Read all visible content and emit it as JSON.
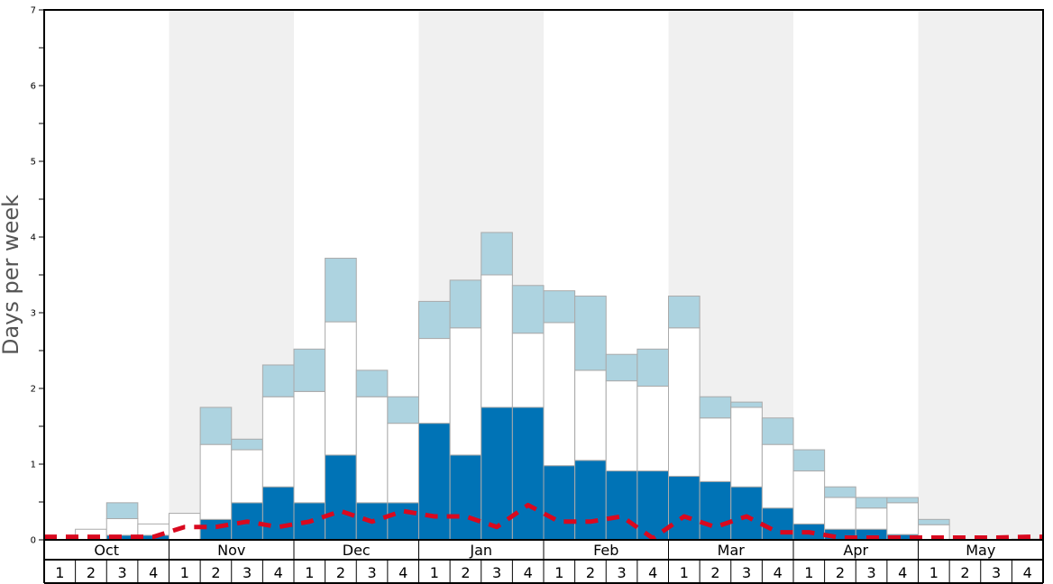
{
  "chart_data": {
    "type": "bar",
    "title": "",
    "ylabel": "Days per week",
    "xlabel": "",
    "ylim": [
      0,
      7
    ],
    "y_ticks": [
      "0",
      "1",
      "2",
      "3",
      "4",
      "5",
      "6",
      "7"
    ],
    "months": [
      "Oct",
      "Nov",
      "Dec",
      "Jan",
      "Feb",
      "Mar",
      "Apr",
      "May"
    ],
    "week_labels": [
      "1",
      "2",
      "3",
      "4",
      "1",
      "2",
      "3",
      "4",
      "1",
      "2",
      "3",
      "4",
      "1",
      "2",
      "3",
      "4",
      "1",
      "2",
      "3",
      "4",
      "1",
      "2",
      "3",
      "4",
      "1",
      "2",
      "3",
      "4",
      "1",
      "2",
      "3",
      "4"
    ],
    "colors": {
      "dark_segment": "#0073b6",
      "mid_segment": "#ffffff",
      "light_segment": "#add3e0",
      "bar_stroke": "#aaaaaa",
      "shade_band": "#f0f0f0",
      "dashed_line": "#d9091f",
      "axis": "#000000"
    },
    "series": [
      {
        "name": "dark",
        "values": [
          0,
          0,
          0.06,
          0.06,
          0,
          0.27,
          0.49,
          0.7,
          0.49,
          1.12,
          0.49,
          0.49,
          1.54,
          1.12,
          1.75,
          1.75,
          0.98,
          1.05,
          0.91,
          0.91,
          0.84,
          0.77,
          0.7,
          0.42,
          0.21,
          0.14,
          0.14,
          0.07,
          0,
          0,
          0,
          0
        ]
      },
      {
        "name": "mid",
        "values": [
          0,
          0.14,
          0.22,
          0.15,
          0.35,
          0.99,
          0.7,
          1.19,
          1.47,
          1.76,
          1.4,
          1.05,
          1.12,
          1.68,
          1.75,
          0.98,
          1.89,
          1.19,
          1.19,
          1.12,
          1.96,
          0.84,
          1.05,
          0.84,
          0.7,
          0.42,
          0.28,
          0.42,
          0.2,
          0,
          0,
          0
        ]
      },
      {
        "name": "light",
        "values": [
          0,
          0,
          0.21,
          0,
          0,
          0.49,
          0.14,
          0.42,
          0.56,
          0.84,
          0.35,
          0.35,
          0.49,
          0.63,
          0.56,
          0.63,
          0.42,
          0.98,
          0.35,
          0.49,
          0.42,
          0.28,
          0.07,
          0.35,
          0.28,
          0.14,
          0.14,
          0.07,
          0.07,
          0,
          0,
          0.01
        ]
      },
      {
        "name": "dashed-line",
        "values": [
          0.04,
          0.04,
          0.04,
          0.04,
          0.17,
          0.17,
          0.24,
          0.17,
          0.24,
          0.38,
          0.24,
          0.38,
          0.31,
          0.31,
          0.17,
          0.46,
          0.24,
          0.24,
          0.31,
          0.02,
          0.31,
          0.17,
          0.31,
          0.1,
          0.1,
          0.03,
          0.03,
          0.03,
          0.03,
          0.03,
          0.03,
          0.04
        ]
      }
    ]
  }
}
